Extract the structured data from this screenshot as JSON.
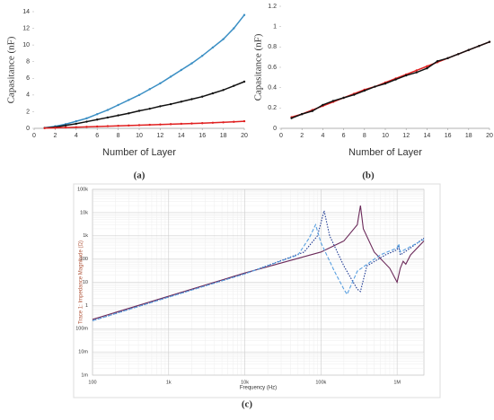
{
  "chart_data": [
    {
      "type": "line",
      "label": "(a)",
      "xlabel": "Number of Layer",
      "ylabel": "Capasitance (nF)",
      "x": [
        1,
        2,
        3,
        4,
        5,
        6,
        7,
        8,
        9,
        10,
        11,
        12,
        13,
        14,
        15,
        16,
        17,
        18,
        19,
        20
      ],
      "xlim": [
        0,
        20
      ],
      "xticks": [
        0,
        2,
        4,
        6,
        8,
        10,
        12,
        14,
        16,
        18,
        20
      ],
      "ylim": [
        0,
        14
      ],
      "yticks": [
        0,
        2,
        4,
        6,
        8,
        10,
        12,
        14
      ],
      "grid": false,
      "markers": true,
      "series": [
        {
          "color": "#3b8fc4",
          "values": [
            0.05,
            0.25,
            0.5,
            0.85,
            1.2,
            1.7,
            2.2,
            2.8,
            3.4,
            4.0,
            4.7,
            5.4,
            6.2,
            7.0,
            7.8,
            8.7,
            9.7,
            10.7,
            12.0,
            13.6
          ]
        },
        {
          "color": "#111111",
          "values": [
            0.05,
            0.15,
            0.35,
            0.55,
            0.8,
            1.05,
            1.3,
            1.55,
            1.8,
            2.1,
            2.35,
            2.65,
            2.9,
            3.2,
            3.5,
            3.8,
            4.2,
            4.6,
            5.1,
            5.6
          ]
        },
        {
          "color": "#e02020",
          "values": [
            0.02,
            0.06,
            0.1,
            0.14,
            0.18,
            0.22,
            0.26,
            0.3,
            0.34,
            0.38,
            0.42,
            0.46,
            0.5,
            0.54,
            0.58,
            0.62,
            0.67,
            0.72,
            0.78,
            0.85
          ]
        }
      ]
    },
    {
      "type": "line",
      "label": "(b)",
      "xlabel": "Number of Layer",
      "ylabel": "Capasitance (nF)",
      "x": [
        1,
        2,
        3,
        4,
        5,
        6,
        7,
        8,
        9,
        10,
        11,
        12,
        13,
        14,
        15,
        16,
        17,
        18,
        19,
        20
      ],
      "xlim": [
        0,
        20
      ],
      "xticks": [
        0,
        2,
        4,
        6,
        8,
        10,
        12,
        14,
        16,
        18,
        20
      ],
      "ylim": [
        0,
        1.2
      ],
      "yticks": [
        0,
        0.2,
        0.4,
        0.6,
        0.8,
        1,
        1.2
      ],
      "grid": false,
      "markers": true,
      "series": [
        {
          "color": "#e02020",
          "values": [
            0.11,
            0.14,
            0.18,
            0.22,
            0.26,
            0.3,
            0.34,
            0.38,
            0.41,
            0.45,
            0.49,
            0.53,
            0.57,
            0.61,
            0.65,
            0.69,
            0.73,
            0.77,
            0.81,
            0.85
          ]
        },
        {
          "color": "#111111",
          "values": [
            0.1,
            0.14,
            0.17,
            0.23,
            0.27,
            0.3,
            0.33,
            0.37,
            0.41,
            0.44,
            0.48,
            0.52,
            0.55,
            0.59,
            0.66,
            0.69,
            0.73,
            0.77,
            0.81,
            0.85
          ]
        }
      ]
    },
    {
      "type": "line",
      "label": "(c)",
      "xlabel": "Frequency (Hz)",
      "ylabel": "Trace 1: Impedance Magnitude (Ω)",
      "x_scale": "log",
      "y_scale": "log",
      "grid": true,
      "markers": false,
      "xlim": [
        100,
        2250000
      ],
      "xticks": [
        100,
        {
          "value": 1000,
          "label": "1k"
        },
        {
          "value": 10000,
          "label": "10k"
        },
        {
          "value": 100000,
          "label": "100k"
        },
        {
          "value": 1000000,
          "label": "1M"
        }
      ],
      "ylim": [
        0.001,
        100000
      ],
      "yticks": [
        {
          "value": 0.001,
          "label": "1m"
        },
        {
          "value": 0.01,
          "label": "10m"
        },
        {
          "value": 0.1,
          "label": "100m"
        },
        1,
        10,
        100,
        {
          "value": 1000,
          "label": "1k"
        },
        {
          "value": 10000,
          "label": "10k"
        },
        {
          "value": 100000,
          "label": "100k"
        }
      ],
      "series": [
        {
          "color": "#6b2a5a",
          "dash": "none",
          "x": [
            100,
            1000,
            10000,
            100000,
            200000,
            300000,
            330000,
            360000,
            500000,
            800000,
            1000000,
            1100000,
            1200000,
            1300000,
            1500000,
            2250000
          ],
          "values": [
            0.25,
            2.5,
            25,
            200,
            600,
            3000,
            20000,
            2000,
            200,
            40,
            10,
            40,
            80,
            60,
            150,
            600
          ]
        },
        {
          "color": "#1f3a93",
          "dash": "1.5 1.5",
          "x": [
            100,
            1000,
            10000,
            60000,
            90000,
            110000,
            130000,
            200000,
            300000,
            330000,
            400000,
            700000,
            1000000,
            1050000,
            1100000,
            1500000,
            2250000
          ],
          "values": [
            0.22,
            2.3,
            23,
            200,
            1000,
            12000,
            1000,
            50,
            5,
            4,
            50,
            150,
            250,
            350,
            150,
            300,
            800
          ]
        },
        {
          "color": "#5aa0e0",
          "dash": "4 2",
          "x": [
            100,
            1000,
            10000,
            50000,
            70000,
            85000,
            100000,
            150000,
            200000,
            220000,
            300000,
            600000,
            1000000,
            1050000,
            1100000,
            2250000
          ],
          "values": [
            0.22,
            2.3,
            23,
            150,
            800,
            3000,
            500,
            30,
            5,
            3,
            30,
            150,
            300,
            450,
            200,
            700
          ]
        }
      ]
    }
  ]
}
